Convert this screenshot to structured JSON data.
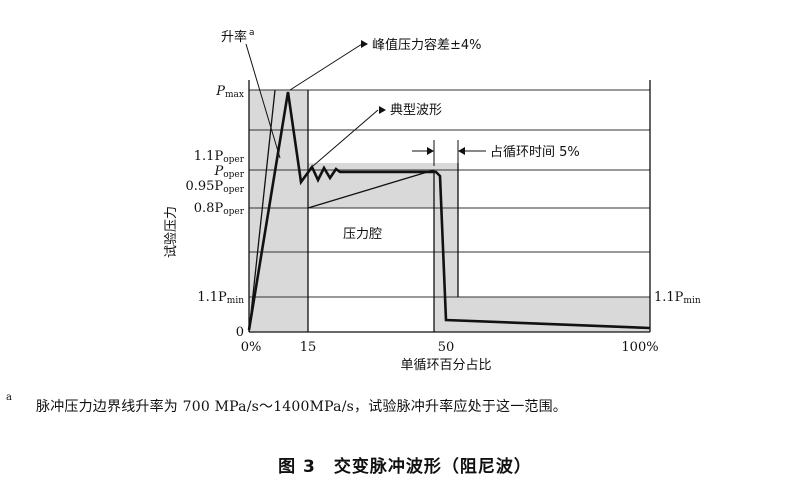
{
  "diagram": {
    "annotations": {
      "rise_rate": "升率",
      "rise_rate_mark": "a",
      "peak_tolerance": "峰值压力容差±4%",
      "typical_waveform": "典型波形",
      "cycle_time": "占循环时间 5%",
      "chamber": "压力腔"
    },
    "y_axis": {
      "label": "试验压力",
      "ticks": [
        {
          "main": "P",
          "sub": "max",
          "id": "pmax"
        },
        {
          "main": "1.1P",
          "sub": "oper",
          "id": "p11oper"
        },
        {
          "main": "P",
          "sub": "oper",
          "id": "poper"
        },
        {
          "main": "0.95P",
          "sub": "oper",
          "id": "p095oper"
        },
        {
          "main": "0.8P",
          "sub": "oper",
          "id": "p08oper"
        },
        {
          "main": "1.1P",
          "sub": "min",
          "id": "p11min"
        },
        {
          "main": "0",
          "sub": "",
          "id": "zero"
        }
      ]
    },
    "x_axis": {
      "label": "单循环百分占比",
      "ticks": [
        "0%",
        "15",
        "50",
        "100%"
      ]
    },
    "right_label": {
      "main": "1.1P",
      "sub": "min"
    }
  },
  "footnote": {
    "mark": "a",
    "text": "脉冲压力边界线升率为 700 MPa/s～1400MPa/s，试验脉冲升率应处于这一范围。"
  },
  "caption": "图 3　交变脉冲波形（阻尼波）"
}
